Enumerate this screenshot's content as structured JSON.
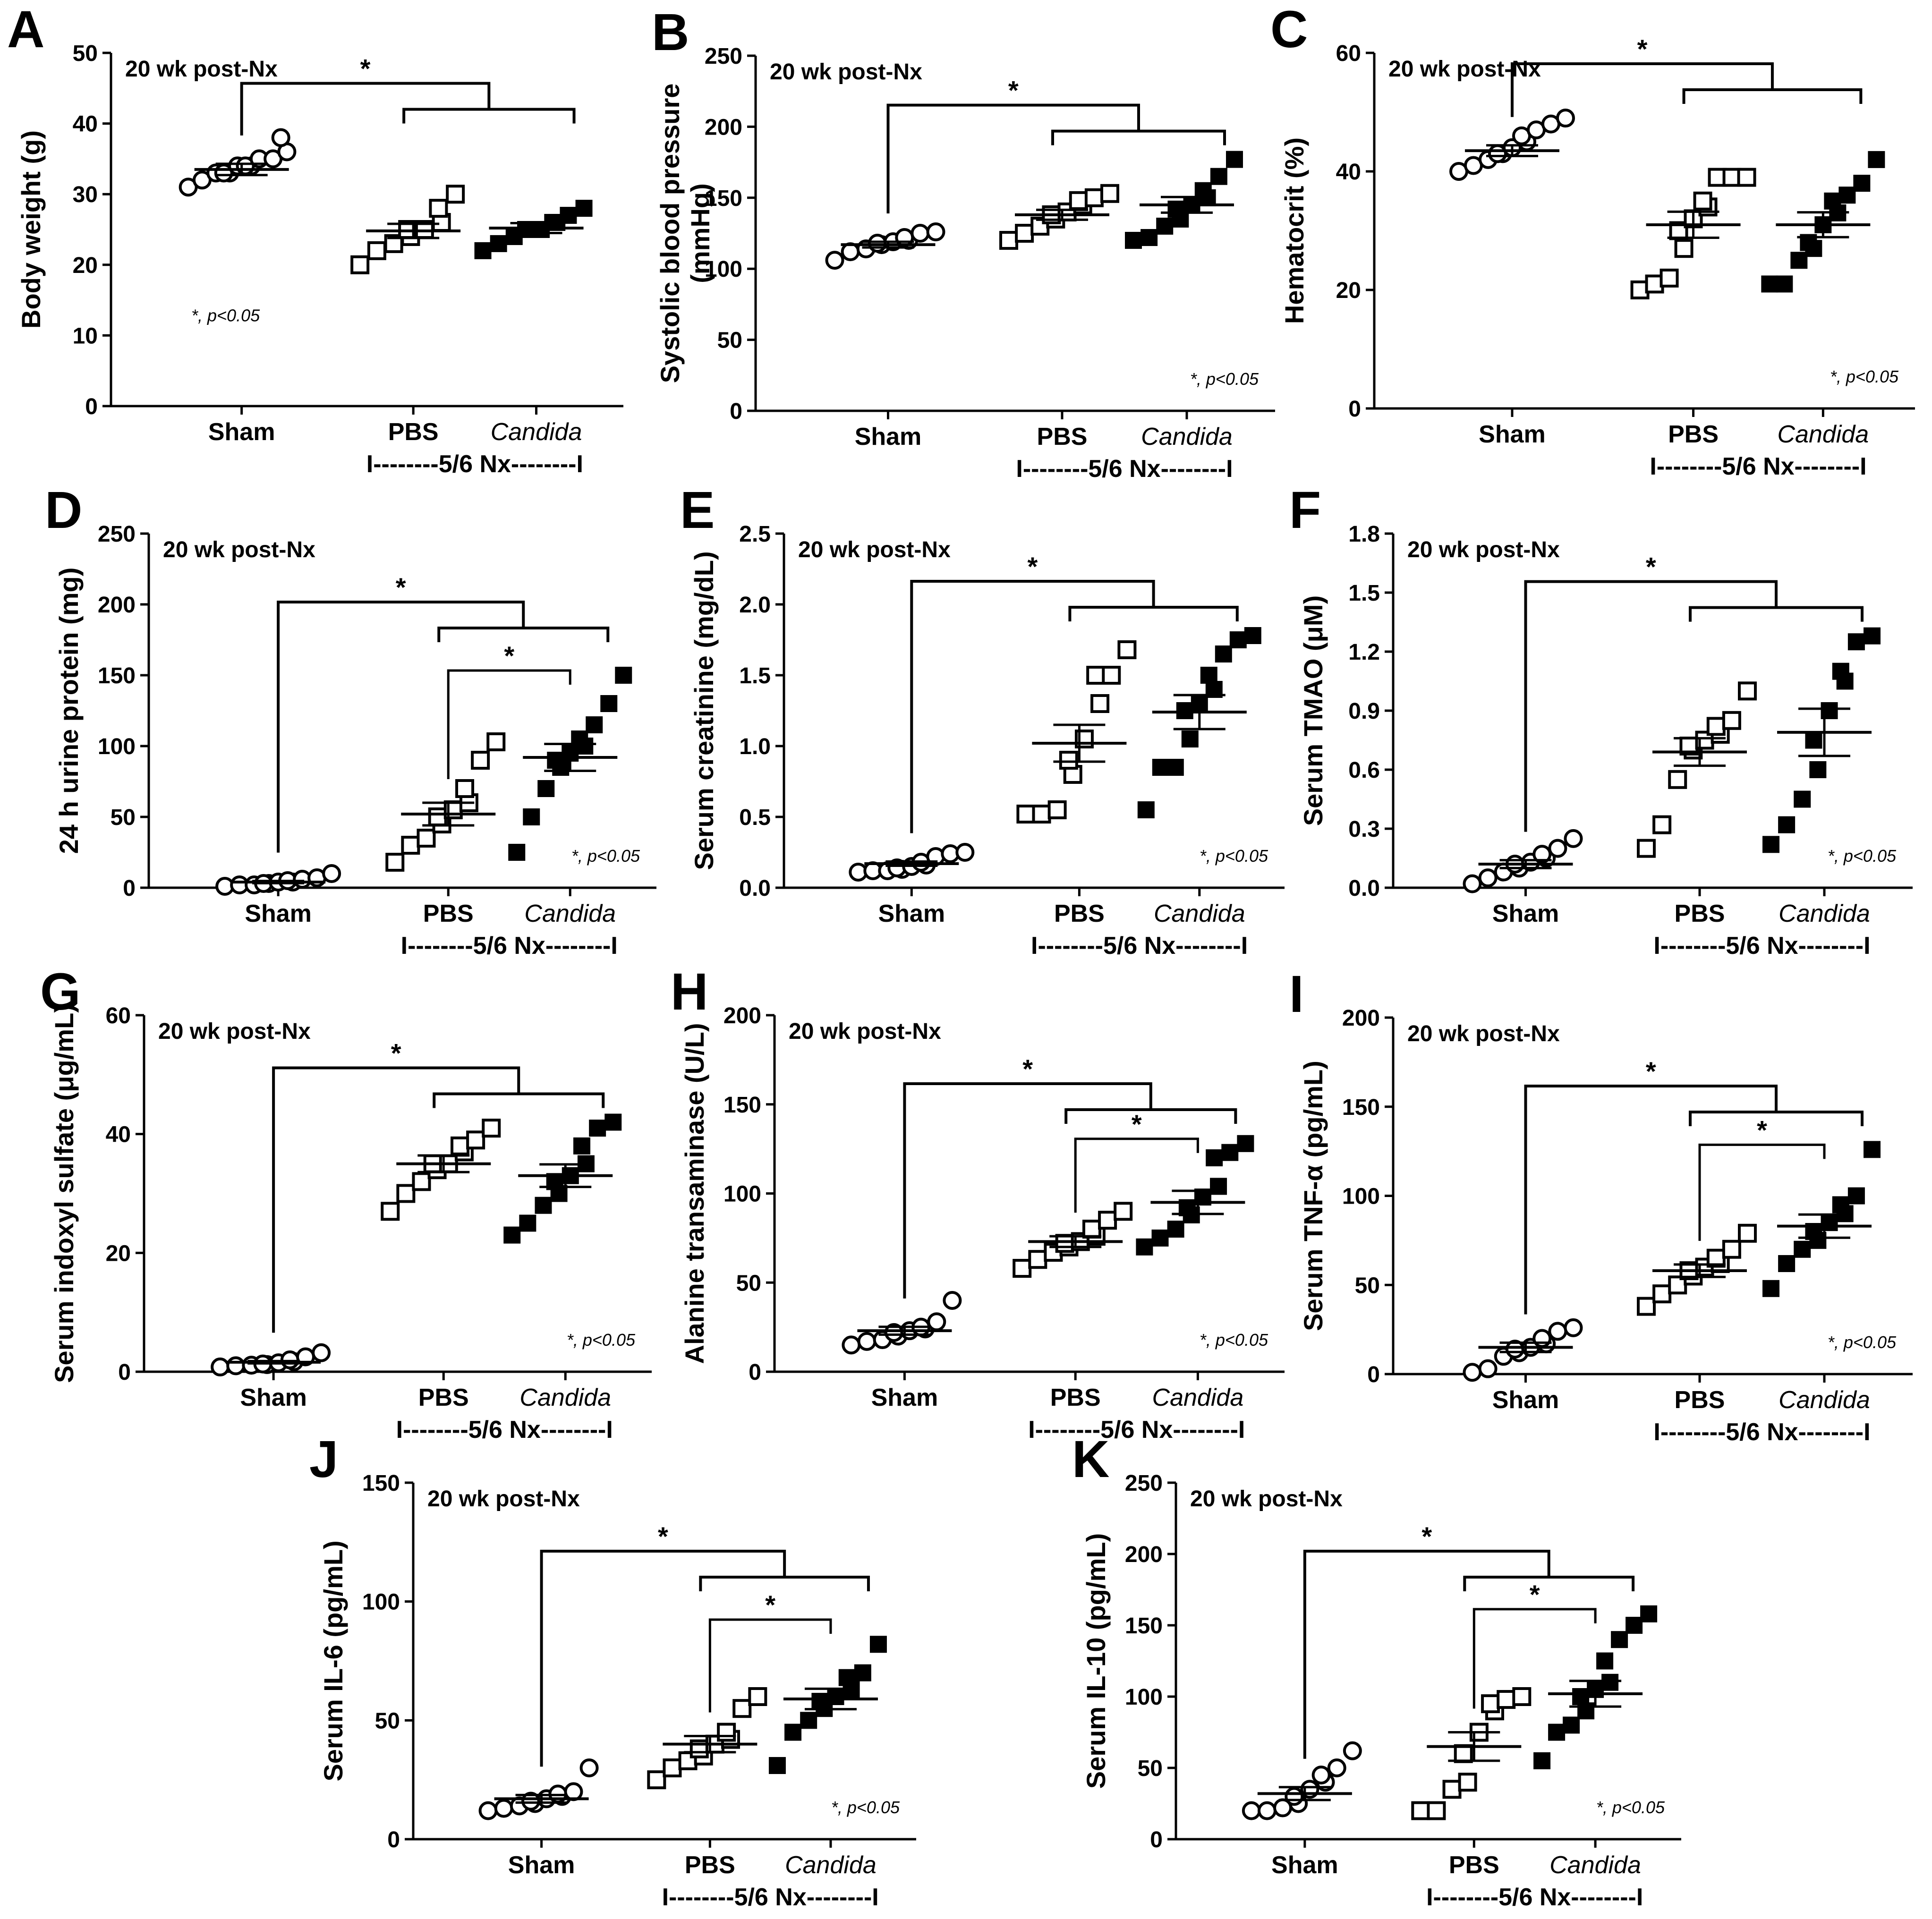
{
  "figure_title": "",
  "chart_data": [
    {
      "id": "A",
      "panel_label": "A",
      "type": "scatter",
      "header": "20 wk post-Nx",
      "ylabel_lines": [
        "Body weight (g)"
      ],
      "ylim": [
        0,
        50
      ],
      "yticks": [
        0,
        10,
        20,
        30,
        40,
        50
      ],
      "categories": [
        "Sham",
        "PBS",
        "Candida"
      ],
      "group_label": "I--------5/6 Nx--------I",
      "significance_note": "*, p<0.05",
      "series": [
        {
          "name": "Sham",
          "marker": "open-circle",
          "values": [
            31,
            32,
            33,
            33,
            33,
            34,
            34,
            34,
            35,
            35,
            36,
            38
          ],
          "mean": 33.5,
          "sem": 0.8
        },
        {
          "name": "PBS",
          "marker": "open-square",
          "values": [
            20,
            22,
            23,
            24,
            25,
            25,
            26,
            28,
            30
          ],
          "mean": 24.8,
          "sem": 1.0
        },
        {
          "name": "Candida",
          "marker": "filled-square",
          "values": [
            22,
            23,
            24,
            25,
            25,
            25,
            26,
            26,
            27,
            28
          ],
          "mean": 25.2,
          "sem": 0.7
        }
      ],
      "brackets": [
        {
          "from": 0,
          "to": [
            1,
            2
          ],
          "label": "*"
        }
      ]
    },
    {
      "id": "B",
      "panel_label": "B",
      "type": "scatter",
      "header": "20 wk post-Nx",
      "ylabel_lines": [
        "Systolic blood pressure",
        "(mmHg)"
      ],
      "ylim": [
        0,
        250
      ],
      "yticks": [
        0,
        50,
        100,
        150,
        200,
        250
      ],
      "categories": [
        "Sham",
        "PBS",
        "Candida"
      ],
      "group_label": "I--------5/6 Nx--------I",
      "significance_note": "*, p<0.05",
      "series": [
        {
          "name": "Sham",
          "marker": "open-circle",
          "values": [
            106,
            112,
            114,
            117,
            118,
            119,
            120,
            122,
            125,
            126
          ],
          "mean": 117,
          "sem": 2.0
        },
        {
          "name": "PBS",
          "marker": "open-square",
          "values": [
            120,
            125,
            130,
            135,
            138,
            140,
            145,
            148,
            150,
            153
          ],
          "mean": 138,
          "sem": 3.5
        },
        {
          "name": "Candida",
          "marker": "filled-square",
          "values": [
            120,
            122,
            130,
            135,
            142,
            145,
            150,
            155,
            165,
            177
          ],
          "mean": 145,
          "sem": 5.5
        }
      ],
      "brackets": [
        {
          "from": 0,
          "to": [
            1,
            2
          ],
          "label": "*"
        }
      ]
    },
    {
      "id": "C",
      "panel_label": "C",
      "type": "scatter",
      "header": "20 wk post-Nx",
      "ylabel_lines": [
        "Hematocrit (%)"
      ],
      "ylim": [
        0,
        60
      ],
      "yticks": [
        0,
        20,
        40,
        60
      ],
      "categories": [
        "Sham",
        "PBS",
        "Candida"
      ],
      "group_label": "I--------5/6 Nx--------I",
      "significance_note": "*, p<0.05",
      "series": [
        {
          "name": "Sham",
          "marker": "open-circle",
          "values": [
            40,
            41,
            42,
            43,
            43,
            44,
            45,
            46,
            47,
            48,
            49
          ],
          "mean": 43.5,
          "sem": 0.9
        },
        {
          "name": "PBS",
          "marker": "open-square",
          "values": [
            20,
            21,
            22,
            27,
            30,
            32,
            34,
            35,
            39,
            39,
            39
          ],
          "mean": 31,
          "sem": 2.2
        },
        {
          "name": "Candida",
          "marker": "filled-square",
          "values": [
            21,
            21,
            25,
            27,
            28,
            31,
            33,
            35,
            36,
            38,
            42
          ],
          "mean": 31,
          "sem": 2.1
        }
      ],
      "brackets": [
        {
          "from": 0,
          "to": [
            1,
            2
          ],
          "label": "*"
        }
      ]
    },
    {
      "id": "D",
      "panel_label": "D",
      "type": "scatter",
      "header": "20 wk post-Nx",
      "ylabel_lines": [
        "24 h urine protein (mg)"
      ],
      "ylim": [
        0,
        250
      ],
      "yticks": [
        0,
        50,
        100,
        150,
        200,
        250
      ],
      "categories": [
        "Sham",
        "PBS",
        "Candida"
      ],
      "group_label": "I--------5/6 Nx--------I",
      "significance_note": "*, p<0.05",
      "series": [
        {
          "name": "Sham",
          "marker": "open-circle",
          "values": [
            1,
            2,
            2,
            3,
            3,
            4,
            4,
            5,
            6,
            7,
            10
          ],
          "mean": 4,
          "sem": 0.8
        },
        {
          "name": "PBS",
          "marker": "open-square",
          "values": [
            18,
            30,
            35,
            45,
            50,
            55,
            60,
            70,
            90,
            103
          ],
          "mean": 52,
          "sem": 8.0
        },
        {
          "name": "Candida",
          "marker": "filled-square",
          "values": [
            25,
            50,
            70,
            85,
            90,
            95,
            100,
            105,
            115,
            130,
            150
          ],
          "mean": 92,
          "sem": 9.5
        }
      ],
      "brackets": [
        {
          "from": 0,
          "to": [
            1,
            2
          ],
          "label": "*"
        },
        {
          "from": 1,
          "to": [
            2
          ],
          "label": "*"
        }
      ]
    },
    {
      "id": "E",
      "panel_label": "E",
      "type": "scatter",
      "header": "20 wk post-Nx",
      "ylabel_lines": [
        "Serum creatinine (mg/dL)"
      ],
      "ylim": [
        0,
        2.5
      ],
      "yticks": [
        0,
        0.5,
        1.0,
        1.5,
        2.0,
        2.5
      ],
      "ytick_labels": [
        "0.0",
        "0.5",
        "1.0",
        "1.5",
        "2.0",
        "2.5"
      ],
      "categories": [
        "Sham",
        "PBS",
        "Candida"
      ],
      "group_label": "I--------5/6 Nx--------I",
      "significance_note": "*, p<0.05",
      "series": [
        {
          "name": "Sham",
          "marker": "open-circle",
          "values": [
            0.11,
            0.12,
            0.12,
            0.13,
            0.14,
            0.15,
            0.16,
            0.18,
            0.22,
            0.24,
            0.25
          ],
          "mean": 0.17,
          "sem": 0.015
        },
        {
          "name": "PBS",
          "marker": "open-square",
          "values": [
            0.52,
            0.52,
            0.55,
            0.8,
            0.9,
            1.05,
            1.3,
            1.5,
            1.5,
            1.68
          ],
          "mean": 1.02,
          "sem": 0.13
        },
        {
          "name": "Candida",
          "marker": "filled-square",
          "values": [
            0.55,
            0.85,
            0.85,
            1.05,
            1.25,
            1.3,
            1.4,
            1.5,
            1.65,
            1.75,
            1.78
          ],
          "mean": 1.24,
          "sem": 0.12
        }
      ],
      "brackets": [
        {
          "from": 0,
          "to": [
            1,
            2
          ],
          "label": "*"
        }
      ]
    },
    {
      "id": "F",
      "panel_label": "F",
      "type": "scatter",
      "header": "20 wk post-Nx",
      "ylabel_lines": [
        "Serum TMAO (μM)"
      ],
      "ylim": [
        0,
        1.8
      ],
      "yticks": [
        0,
        0.3,
        0.6,
        0.9,
        1.2,
        1.5,
        1.8
      ],
      "ytick_labels": [
        "0.0",
        "0.3",
        "0.6",
        "0.9",
        "1.2",
        "1.5",
        "1.8"
      ],
      "categories": [
        "Sham",
        "PBS",
        "Candida"
      ],
      "group_label": "I--------5/6 Nx--------I",
      "significance_note": "*, p<0.05",
      "series": [
        {
          "name": "Sham",
          "marker": "open-circle",
          "values": [
            0.02,
            0.05,
            0.08,
            0.1,
            0.12,
            0.13,
            0.15,
            0.17,
            0.2,
            0.25
          ],
          "mean": 0.12,
          "sem": 0.02
        },
        {
          "name": "PBS",
          "marker": "open-square",
          "values": [
            0.2,
            0.32,
            0.55,
            0.7,
            0.72,
            0.75,
            0.78,
            0.82,
            0.85,
            1.0
          ],
          "mean": 0.69,
          "sem": 0.07
        },
        {
          "name": "Candida",
          "marker": "filled-square",
          "values": [
            0.22,
            0.32,
            0.45,
            0.6,
            0.75,
            0.9,
            1.05,
            1.1,
            1.25,
            1.28
          ],
          "mean": 0.79,
          "sem": 0.12
        }
      ],
      "brackets": [
        {
          "from": 0,
          "to": [
            1,
            2
          ],
          "label": "*"
        }
      ]
    },
    {
      "id": "G",
      "panel_label": "G",
      "type": "scatter",
      "header": "20 wk post-Nx",
      "ylabel_lines": [
        "Serum indoxyl sulfate (μg/mL)"
      ],
      "ylim": [
        0,
        60
      ],
      "yticks": [
        0,
        20,
        40,
        60
      ],
      "categories": [
        "Sham",
        "PBS",
        "Candida"
      ],
      "group_label": "I--------5/6 Nx--------I",
      "significance_note": "*, p<0.05",
      "series": [
        {
          "name": "Sham",
          "marker": "open-circle",
          "values": [
            0.8,
            1.0,
            1.1,
            1.2,
            1.3,
            1.5,
            1.7,
            2.0,
            2.5,
            3.2
          ],
          "mean": 1.6,
          "sem": 0.2
        },
        {
          "name": "PBS",
          "marker": "open-square",
          "values": [
            27,
            30,
            32,
            34,
            35,
            35,
            37,
            38,
            39,
            41
          ],
          "mean": 35,
          "sem": 1.4
        },
        {
          "name": "Candida",
          "marker": "filled-square",
          "values": [
            23,
            25,
            28,
            30,
            32,
            33,
            35,
            38,
            41,
            42
          ],
          "mean": 33,
          "sem": 1.9
        }
      ],
      "brackets": [
        {
          "from": 0,
          "to": [
            1,
            2
          ],
          "label": "*"
        }
      ]
    },
    {
      "id": "H",
      "panel_label": "H",
      "type": "scatter",
      "header": "20 wk post-Nx",
      "ylabel_lines": [
        "Alanine transaminase (U/L)"
      ],
      "ylim": [
        0,
        200
      ],
      "yticks": [
        0,
        50,
        100,
        150,
        200
      ],
      "categories": [
        "Sham",
        "PBS",
        "Candida"
      ],
      "group_label": "I--------5/6 Nx--------I",
      "significance_note": "*, p<0.05",
      "series": [
        {
          "name": "Sham",
          "marker": "open-circle",
          "values": [
            15,
            17,
            18,
            20,
            22,
            23,
            24,
            25,
            28,
            40
          ],
          "mean": 23,
          "sem": 2.2
        },
        {
          "name": "PBS",
          "marker": "open-square",
          "values": [
            58,
            63,
            67,
            70,
            72,
            73,
            76,
            80,
            85,
            90
          ],
          "mean": 73,
          "sem": 3.0
        },
        {
          "name": "Candida",
          "marker": "filled-square",
          "values": [
            70,
            75,
            80,
            88,
            92,
            98,
            104,
            120,
            123,
            128
          ],
          "mean": 95,
          "sem": 6.5
        }
      ],
      "brackets": [
        {
          "from": 0,
          "to": [
            1,
            2
          ],
          "label": "*"
        },
        {
          "from": 1,
          "to": [
            2
          ],
          "label": "*"
        }
      ]
    },
    {
      "id": "I",
      "panel_label": "I",
      "type": "scatter",
      "header": "20 wk post-Nx",
      "ylabel_lines": [
        "Serum TNF-α (pg/mL)"
      ],
      "ylim": [
        0,
        200
      ],
      "yticks": [
        0,
        50,
        100,
        150,
        200
      ],
      "categories": [
        "Sham",
        "PBS",
        "Candida"
      ],
      "group_label": "I--------5/6 Nx--------I",
      "significance_note": "*, p<0.05",
      "series": [
        {
          "name": "Sham",
          "marker": "open-circle",
          "values": [
            1,
            3,
            10,
            12,
            14,
            15,
            17,
            20,
            24,
            26
          ],
          "mean": 15,
          "sem": 2.6
        },
        {
          "name": "PBS",
          "marker": "open-square",
          "values": [
            38,
            45,
            50,
            55,
            58,
            60,
            62,
            65,
            70,
            79
          ],
          "mean": 58,
          "sem": 3.5
        },
        {
          "name": "Candida",
          "marker": "filled-square",
          "values": [
            48,
            62,
            70,
            75,
            80,
            85,
            90,
            95,
            100,
            126
          ],
          "mean": 83,
          "sem": 6.5
        }
      ],
      "brackets": [
        {
          "from": 0,
          "to": [
            1,
            2
          ],
          "label": "*"
        },
        {
          "from": 1,
          "to": [
            2
          ],
          "label": "*"
        }
      ]
    },
    {
      "id": "J",
      "panel_label": "J",
      "type": "scatter",
      "header": "20 wk post-Nx",
      "ylabel_lines": [
        "Serum IL-6 (pg/mL)"
      ],
      "ylim": [
        0,
        150
      ],
      "yticks": [
        0,
        50,
        100,
        150
      ],
      "categories": [
        "Sham",
        "PBS",
        "Candida"
      ],
      "group_label": "I--------5/6 Nx--------I",
      "significance_note": "*, p<0.05",
      "series": [
        {
          "name": "Sham",
          "marker": "open-circle",
          "values": [
            12,
            13,
            14,
            15,
            16,
            17,
            18,
            19,
            20,
            30
          ],
          "mean": 17,
          "sem": 1.6
        },
        {
          "name": "PBS",
          "marker": "open-square",
          "values": [
            25,
            30,
            33,
            35,
            38,
            40,
            42,
            45,
            55,
            60
          ],
          "mean": 40,
          "sem": 3.4
        },
        {
          "name": "Candida",
          "marker": "filled-square",
          "values": [
            31,
            45,
            50,
            55,
            58,
            60,
            63,
            68,
            70,
            82
          ],
          "mean": 59,
          "sem": 4.3
        }
      ],
      "brackets": [
        {
          "from": 0,
          "to": [
            1,
            2
          ],
          "label": "*"
        },
        {
          "from": 1,
          "to": [
            2
          ],
          "label": "*"
        }
      ]
    },
    {
      "id": "K",
      "panel_label": "K",
      "type": "scatter",
      "header": "20 wk post-Nx",
      "ylabel_lines": [
        "Serum IL-10 (pg/mL)"
      ],
      "ylim": [
        0,
        250
      ],
      "yticks": [
        0,
        50,
        100,
        150,
        200,
        250
      ],
      "categories": [
        "Sham",
        "PBS",
        "Candida"
      ],
      "group_label": "I--------5/6 Nx--------I",
      "significance_note": "*, p<0.05",
      "series": [
        {
          "name": "Sham",
          "marker": "open-circle",
          "values": [
            20,
            20,
            22,
            25,
            30,
            35,
            40,
            45,
            50,
            62
          ],
          "mean": 32,
          "sem": 4.5
        },
        {
          "name": "PBS",
          "marker": "open-square",
          "values": [
            20,
            20,
            35,
            40,
            60,
            75,
            90,
            95,
            98,
            100
          ],
          "mean": 65,
          "sem": 10
        },
        {
          "name": "Candida",
          "marker": "filled-square",
          "values": [
            55,
            75,
            80,
            90,
            100,
            105,
            110,
            125,
            140,
            150,
            158
          ],
          "mean": 102,
          "sem": 9
        }
      ],
      "brackets": [
        {
          "from": 0,
          "to": [
            1,
            2
          ],
          "label": "*"
        },
        {
          "from": 1,
          "to": [
            2
          ],
          "label": "*"
        }
      ]
    }
  ]
}
